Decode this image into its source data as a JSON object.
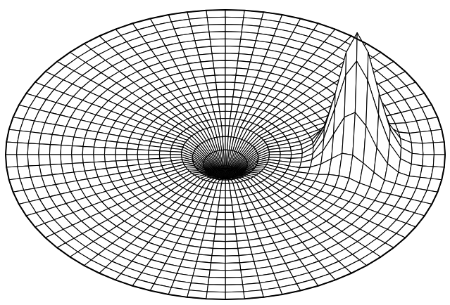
{
  "chart_data": {
    "type": "surface",
    "color": "#000000",
    "tick_labels": false,
    "grid": false,
    "zlim": [
      -0.2,
      1
    ],
    "r": [
      0,
      0.05,
      0.1,
      0.15,
      0.2,
      0.25,
      0.3,
      0.35,
      0.4,
      0.45,
      0.5,
      0.55,
      0.6,
      0.65,
      0.7,
      0.75,
      0.8,
      0.85,
      0.9,
      0.95,
      1
    ],
    "theta": [
      0,
      5,
      10,
      15,
      20,
      25,
      30,
      35,
      40,
      45,
      50,
      55,
      60,
      65,
      70,
      75,
      80,
      85,
      90,
      95,
      100,
      105,
      110,
      115,
      120,
      125,
      130,
      135,
      140,
      145,
      150,
      155,
      160,
      165,
      170,
      175,
      180,
      185,
      190,
      195,
      200,
      205,
      210,
      215,
      220,
      225,
      230,
      235,
      240,
      245,
      250,
      255,
      260,
      265,
      270,
      275,
      280,
      285,
      290,
      295,
      300,
      305,
      310,
      315,
      320,
      325,
      330,
      335,
      340,
      345,
      350,
      355
    ],
    "z": [
      [
        -0.2,
        -0.2,
        -0.2,
        -0.2,
        -0.2,
        -0.2,
        -0.2,
        -0.2,
        -0.2,
        -0.2,
        -0.2,
        -0.2,
        -0.2,
        -0.2,
        -0.2,
        -0.2,
        -0.2,
        -0.2,
        -0.2,
        -0.2,
        -0.2,
        -0.2,
        -0.2,
        -0.2,
        -0.2,
        -0.2,
        -0.2,
        -0.2,
        -0.2,
        -0.2,
        -0.2,
        -0.2,
        -0.2,
        -0.2,
        -0.2,
        -0.2,
        -0.2,
        -0.2,
        -0.2,
        -0.2,
        -0.2,
        -0.2,
        -0.2,
        -0.2,
        -0.2,
        -0.2,
        -0.2,
        -0.2,
        -0.2,
        -0.2,
        -0.2,
        -0.2,
        -0.2,
        -0.2,
        -0.2,
        -0.2,
        -0.2,
        -0.2,
        -0.2,
        -0.2,
        -0.2,
        -0.2,
        -0.2,
        -0.2,
        -0.2,
        -0.2,
        -0.2,
        -0.2,
        -0.2,
        -0.2,
        -0.2,
        -0.2
      ],
      [
        -0.15,
        -0.15,
        -0.15,
        -0.15,
        -0.15,
        -0.15,
        -0.15,
        -0.15,
        -0.15,
        -0.15,
        -0.15,
        -0.15,
        -0.15,
        -0.15,
        -0.15,
        -0.15,
        -0.15,
        -0.15,
        -0.15,
        -0.15,
        -0.15,
        -0.15,
        -0.15,
        -0.15,
        -0.15,
        -0.15,
        -0.15,
        -0.15,
        -0.15,
        -0.15,
        -0.15,
        -0.15,
        -0.15,
        -0.15,
        -0.15,
        -0.15,
        -0.15,
        -0.15,
        -0.15,
        -0.15,
        -0.15,
        -0.15,
        -0.15,
        -0.15,
        -0.15,
        -0.15,
        -0.15,
        -0.15,
        -0.15,
        -0.15,
        -0.15,
        -0.15,
        -0.15,
        -0.15,
        -0.15,
        -0.15,
        -0.15,
        -0.15,
        -0.15,
        -0.15,
        -0.15,
        -0.15,
        -0.15,
        -0.15,
        -0.15,
        -0.15,
        -0.15,
        -0.15,
        -0.15,
        -0.15,
        -0.15,
        -0.15
      ],
      [
        -0.08,
        -0.08,
        -0.08,
        -0.08,
        -0.08,
        -0.08,
        -0.08,
        -0.08,
        -0.08,
        -0.08,
        -0.08,
        -0.08,
        -0.08,
        -0.08,
        -0.08,
        -0.08,
        -0.08,
        -0.08,
        -0.08,
        -0.08,
        -0.08,
        -0.08,
        -0.08,
        -0.08,
        -0.08,
        -0.08,
        -0.08,
        -0.08,
        -0.08,
        -0.08,
        -0.08,
        -0.08,
        -0.08,
        -0.08,
        -0.08,
        -0.08,
        -0.08,
        -0.08,
        -0.08,
        -0.08,
        -0.08,
        -0.08,
        -0.08,
        -0.08,
        -0.08,
        -0.08,
        -0.08,
        -0.08,
        -0.08,
        -0.08,
        -0.08,
        -0.08,
        -0.08,
        -0.08,
        -0.08,
        -0.08,
        -0.08,
        -0.08,
        -0.08,
        -0.08,
        -0.08,
        -0.08,
        -0.08,
        -0.08,
        -0.08,
        -0.08,
        -0.08,
        -0.08,
        -0.08,
        -0.08,
        -0.08,
        -0.08
      ],
      [
        -0.03,
        -0.03,
        -0.03,
        -0.03,
        -0.03,
        -0.03,
        -0.03,
        -0.03,
        -0.03,
        -0.03,
        -0.03,
        -0.03,
        -0.03,
        -0.03,
        -0.03,
        -0.03,
        -0.03,
        -0.03,
        -0.03,
        -0.03,
        -0.03,
        -0.03,
        -0.03,
        -0.03,
        -0.03,
        -0.03,
        -0.03,
        -0.03,
        -0.03,
        -0.03,
        -0.03,
        -0.03,
        -0.03,
        -0.03,
        -0.03,
        -0.03,
        -0.03,
        -0.03,
        -0.03,
        -0.03,
        -0.03,
        -0.03,
        -0.03,
        -0.03,
        -0.03,
        -0.03,
        -0.03,
        -0.03,
        -0.03,
        -0.03,
        -0.03,
        -0.03,
        -0.03,
        -0.03,
        -0.03,
        -0.03,
        -0.03,
        -0.03,
        -0.03,
        -0.03,
        -0.03,
        -0.03,
        -0.03,
        -0.03,
        -0.03,
        -0.03,
        -0.03,
        -0.03,
        -0.03,
        -0.03,
        -0.03,
        -0.03
      ],
      [
        0,
        0,
        0,
        0,
        0,
        0,
        0,
        0,
        0,
        0,
        0,
        0,
        0,
        0,
        0,
        0,
        0,
        0,
        0,
        0,
        0,
        0,
        0,
        0,
        0,
        0,
        0,
        0,
        0,
        0,
        0,
        0,
        0,
        0,
        0,
        0,
        0,
        0,
        0,
        0,
        0,
        0,
        0,
        0,
        0,
        0,
        0,
        0,
        0,
        0,
        0,
        0,
        0,
        0,
        0,
        0,
        0,
        0,
        0,
        0,
        0,
        0,
        0,
        0,
        0,
        0,
        0,
        0,
        0,
        0,
        0,
        0
      ],
      [
        0,
        0,
        0,
        0,
        0,
        0,
        0,
        0,
        0,
        0,
        0,
        0,
        0,
        0,
        0,
        0,
        0,
        0,
        0,
        0,
        0,
        0,
        0,
        0,
        0,
        0,
        0,
        0,
        0,
        0,
        0,
        0,
        0,
        0,
        0,
        0,
        0,
        0,
        0,
        0,
        0,
        0,
        0,
        0,
        0,
        0,
        0,
        0,
        0,
        0,
        0,
        0,
        0,
        0,
        0,
        0,
        0,
        0,
        0,
        0,
        0,
        0,
        0,
        0,
        0,
        0,
        0,
        0,
        0,
        0,
        0,
        0
      ],
      [
        0,
        0,
        0,
        0,
        0,
        0,
        0,
        0,
        0,
        0,
        0,
        0,
        0,
        0,
        0,
        0,
        0,
        0,
        0,
        0,
        0,
        0,
        0,
        0,
        0,
        0,
        0,
        0,
        0,
        0,
        0,
        0,
        0,
        0,
        0,
        0,
        0,
        0,
        0,
        0,
        0,
        0,
        0,
        0,
        0,
        0,
        0,
        0,
        0,
        0,
        0,
        0,
        0,
        0,
        0,
        0,
        0,
        0,
        0,
        0,
        0,
        0,
        0,
        0,
        0,
        0,
        0,
        0,
        0,
        0,
        0,
        0
      ],
      [
        0.01,
        0.01,
        0.01,
        0,
        0,
        0,
        0,
        0,
        0,
        0,
        0,
        0,
        0,
        0,
        0,
        0,
        0,
        0,
        0,
        0,
        0,
        0,
        0,
        0,
        0,
        0,
        0,
        0,
        0,
        0,
        0,
        0,
        0,
        0,
        0,
        0,
        0,
        0,
        0,
        0,
        0,
        0,
        0,
        0,
        0,
        0,
        0,
        0,
        0,
        0,
        0,
        0,
        0,
        0,
        0,
        0,
        0,
        0,
        0,
        0,
        0,
        0,
        0,
        0,
        0,
        0,
        0,
        0,
        0,
        0,
        0.01,
        0.01
      ],
      [
        0.06,
        0.05,
        0.04,
        0.02,
        0.01,
        0,
        0,
        0,
        0,
        0,
        0,
        0,
        0,
        0,
        0,
        0,
        0,
        0,
        0,
        0,
        0,
        0,
        0,
        0,
        0,
        0,
        0,
        0,
        0,
        0,
        0,
        0,
        0,
        0,
        0,
        0,
        0,
        0,
        0,
        0,
        0,
        0,
        0,
        0,
        0,
        0,
        0,
        0,
        0,
        0,
        0,
        0,
        0,
        0,
        0,
        0,
        0,
        0,
        0,
        0,
        0,
        0,
        0,
        0,
        0,
        0,
        0,
        0,
        0.01,
        0.02,
        0.04,
        0.05
      ],
      [
        0.21,
        0.18,
        0.12,
        0.06,
        0.02,
        0.01,
        0,
        0,
        0,
        0,
        0,
        0,
        0,
        0,
        0,
        0,
        0,
        0,
        0,
        0,
        0,
        0,
        0,
        0,
        0,
        0,
        0,
        0,
        0,
        0,
        0,
        0,
        0,
        0,
        0,
        0,
        0,
        0,
        0,
        0,
        0,
        0,
        0,
        0,
        0,
        0,
        0,
        0,
        0,
        0,
        0,
        0,
        0,
        0,
        0,
        0,
        0,
        0,
        0,
        0,
        0,
        0,
        0,
        0,
        0,
        0,
        0,
        0.01,
        0.02,
        0.06,
        0.12,
        0.18
      ],
      [
        0.5,
        0.43,
        0.27,
        0.12,
        0.04,
        0.01,
        0,
        0,
        0,
        0,
        0,
        0,
        0,
        0,
        0,
        0,
        0,
        0,
        0,
        0,
        0,
        0,
        0,
        0,
        0,
        0,
        0,
        0,
        0,
        0,
        0,
        0,
        0,
        0,
        0,
        0,
        0,
        0,
        0,
        0,
        0,
        0,
        0,
        0,
        0,
        0,
        0,
        0,
        0,
        0,
        0,
        0,
        0,
        0,
        0,
        0,
        0,
        0,
        0,
        0,
        0,
        0,
        0,
        0,
        0,
        0,
        0,
        0.01,
        0.04,
        0.12,
        0.27,
        0.43
      ],
      [
        0.84,
        0.71,
        0.42,
        0.18,
        0.05,
        0.01,
        0,
        0,
        0,
        0,
        0,
        0,
        0,
        0,
        0,
        0,
        0,
        0,
        0,
        0,
        0,
        0,
        0,
        0,
        0,
        0,
        0,
        0,
        0,
        0,
        0,
        0,
        0,
        0,
        0,
        0,
        0,
        0,
        0,
        0,
        0,
        0,
        0,
        0,
        0,
        0,
        0,
        0,
        0,
        0,
        0,
        0,
        0,
        0,
        0,
        0,
        0,
        0,
        0,
        0,
        0,
        0,
        0,
        0,
        0,
        0,
        0,
        0.01,
        0.05,
        0.18,
        0.42,
        0.71
      ],
      [
        1,
        0.83,
        0.47,
        0.18,
        0.05,
        0.01,
        0,
        0,
        0,
        0,
        0,
        0,
        0,
        0,
        0,
        0,
        0,
        0,
        0,
        0,
        0,
        0,
        0,
        0,
        0,
        0,
        0,
        0,
        0,
        0,
        0,
        0,
        0,
        0,
        0,
        0,
        0,
        0,
        0,
        0,
        0,
        0,
        0,
        0,
        0,
        0,
        0,
        0,
        0,
        0,
        0,
        0,
        0,
        0,
        0,
        0,
        0,
        0,
        0,
        0,
        0,
        0,
        0,
        0,
        0,
        0,
        0,
        0.01,
        0.05,
        0.18,
        0.47,
        0.83
      ],
      [
        0.84,
        0.68,
        0.37,
        0.13,
        0.03,
        0.01,
        0,
        0,
        0,
        0,
        0,
        0,
        0,
        0,
        0,
        0,
        0,
        0,
        0,
        0,
        0,
        0,
        0,
        0,
        0,
        0,
        0,
        0,
        0,
        0,
        0,
        0,
        0,
        0,
        0,
        0,
        0,
        0,
        0,
        0,
        0,
        0,
        0,
        0,
        0,
        0,
        0,
        0,
        0,
        0,
        0,
        0,
        0,
        0,
        0,
        0,
        0,
        0,
        0,
        0,
        0,
        0,
        0,
        0,
        0,
        0,
        0,
        0.01,
        0.03,
        0.13,
        0.37,
        0.68
      ],
      [
        0.5,
        0.4,
        0.2,
        0.07,
        0.02,
        0,
        0,
        0,
        0,
        0,
        0,
        0,
        0,
        0,
        0,
        0,
        0,
        0,
        0,
        0,
        0,
        0,
        0,
        0,
        0,
        0,
        0,
        0,
        0,
        0,
        0,
        0,
        0,
        0,
        0,
        0,
        0,
        0,
        0,
        0,
        0,
        0,
        0,
        0,
        0,
        0,
        0,
        0,
        0,
        0,
        0,
        0,
        0,
        0,
        0,
        0,
        0,
        0,
        0,
        0,
        0,
        0,
        0,
        0,
        0,
        0,
        0,
        0,
        0.02,
        0.07,
        0.2,
        0.4
      ],
      [
        0.21,
        0.17,
        0.08,
        0.02,
        0,
        0,
        0,
        0,
        0,
        0,
        0,
        0,
        0,
        0,
        0,
        0,
        0,
        0,
        0,
        0,
        0,
        0,
        0,
        0,
        0,
        0,
        0,
        0,
        0,
        0,
        0,
        0,
        0,
        0,
        0,
        0,
        0,
        0,
        0,
        0,
        0,
        0,
        0,
        0,
        0,
        0,
        0,
        0,
        0,
        0,
        0,
        0,
        0,
        0,
        0,
        0,
        0,
        0,
        0,
        0,
        0,
        0,
        0,
        0,
        0,
        0,
        0,
        0,
        0,
        0.02,
        0.08,
        0.17
      ],
      [
        0.06,
        0.05,
        0.02,
        0.01,
        0,
        0,
        0,
        0,
        0,
        0,
        0,
        0,
        0,
        0,
        0,
        0,
        0,
        0,
        0,
        0,
        0,
        0,
        0,
        0,
        0,
        0,
        0,
        0,
        0,
        0,
        0,
        0,
        0,
        0,
        0,
        0,
        0,
        0,
        0,
        0,
        0,
        0,
        0,
        0,
        0,
        0,
        0,
        0,
        0,
        0,
        0,
        0,
        0,
        0,
        0,
        0,
        0,
        0,
        0,
        0,
        0,
        0,
        0,
        0,
        0,
        0,
        0,
        0,
        0,
        0.01,
        0.02,
        0.05
      ],
      [
        0.01,
        0.01,
        0,
        0,
        0,
        0,
        0,
        0,
        0,
        0,
        0,
        0,
        0,
        0,
        0,
        0,
        0,
        0,
        0,
        0,
        0,
        0,
        0,
        0,
        0,
        0,
        0,
        0,
        0,
        0,
        0,
        0,
        0,
        0,
        0,
        0,
        0,
        0,
        0,
        0,
        0,
        0,
        0,
        0,
        0,
        0,
        0,
        0,
        0,
        0,
        0,
        0,
        0,
        0,
        0,
        0,
        0,
        0,
        0,
        0,
        0,
        0,
        0,
        0,
        0,
        0,
        0,
        0,
        0,
        0,
        0,
        0.01
      ],
      [
        0,
        0,
        0,
        0,
        0,
        0,
        0,
        0,
        0,
        0,
        0,
        0,
        0,
        0,
        0,
        0,
        0,
        0,
        0,
        0,
        0,
        0,
        0,
        0,
        0,
        0,
        0,
        0,
        0,
        0,
        0,
        0,
        0,
        0,
        0,
        0,
        0,
        0,
        0,
        0,
        0,
        0,
        0,
        0,
        0,
        0,
        0,
        0,
        0,
        0,
        0,
        0,
        0,
        0,
        0,
        0,
        0,
        0,
        0,
        0,
        0,
        0,
        0,
        0,
        0,
        0,
        0,
        0,
        0,
        0,
        0,
        0
      ],
      [
        0,
        0,
        0,
        0,
        0,
        0,
        0,
        0,
        0,
        0,
        0,
        0,
        0,
        0,
        0,
        0,
        0,
        0,
        0,
        0,
        0,
        0,
        0,
        0,
        0,
        0,
        0,
        0,
        0,
        0,
        0,
        0,
        0,
        0,
        0,
        0,
        0,
        0,
        0,
        0,
        0,
        0,
        0,
        0,
        0,
        0,
        0,
        0,
        0,
        0,
        0,
        0,
        0,
        0,
        0,
        0,
        0,
        0,
        0,
        0,
        0,
        0,
        0,
        0,
        0,
        0,
        0,
        0,
        0,
        0,
        0,
        0
      ],
      [
        0,
        0,
        0,
        0,
        0,
        0,
        0,
        0,
        0,
        0,
        0,
        0,
        0,
        0,
        0,
        0,
        0,
        0,
        0,
        0,
        0,
        0,
        0,
        0,
        0,
        0,
        0,
        0,
        0,
        0,
        0,
        0,
        0,
        0,
        0,
        0,
        0,
        0,
        0,
        0,
        0,
        0,
        0,
        0,
        0,
        0,
        0,
        0,
        0,
        0,
        0,
        0,
        0,
        0,
        0,
        0,
        0,
        0,
        0,
        0,
        0,
        0,
        0,
        0,
        0,
        0,
        0,
        0,
        0,
        0,
        0,
        0
      ]
    ]
  }
}
